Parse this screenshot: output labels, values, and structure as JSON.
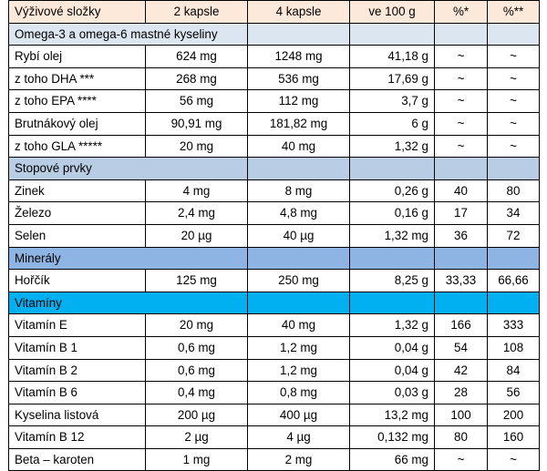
{
  "table": {
    "header": [
      "Výživové složky",
      "2 kapsle",
      "4 kapsle",
      "ve 100 g",
      "%*",
      "%**"
    ],
    "sections": [
      {
        "title": "Omega-3 a omega-6 mastné kyseliny",
        "color": "#dce6f1",
        "rows": [
          [
            "Rybí olej",
            "624 mg",
            "1248 mg",
            "41,18 g",
            "~",
            "~"
          ],
          [
            "z toho DHA ***",
            "268 mg",
            "536 mg",
            "17,69 g",
            "~",
            "~"
          ],
          [
            "z toho EPA ****",
            "56 mg",
            "112 mg",
            "3,7 g",
            "~",
            "~"
          ],
          [
            "Brutnákový olej",
            "90,91 mg",
            "181,82 mg",
            "6 g",
            "~",
            "~"
          ],
          [
            "z toho GLA *****",
            "20 mg",
            "40 mg",
            "1,32 g",
            "~",
            "~"
          ]
        ]
      },
      {
        "title": "Stopové prvky",
        "color": "#b8cce4",
        "rows": [
          [
            "Zinek",
            "4 mg",
            "8 mg",
            "0,26 g",
            "40",
            "80"
          ],
          [
            "Železo",
            "2,4 mg",
            "4,8 mg",
            "0,16 g",
            "17",
            "34"
          ],
          [
            "Selen",
            "20 µg",
            "40 µg",
            "1,32 mg",
            "36",
            "72"
          ]
        ]
      },
      {
        "title": "Minerály",
        "color": "#8db4e2",
        "rows": [
          [
            "Hořčík",
            "125 mg",
            "250 mg",
            "8,25 g",
            "33,33",
            "66,66"
          ]
        ]
      },
      {
        "title": "Vitamíny",
        "color": "#00b0f0",
        "rows": [
          [
            "Vitamín E",
            "20 mg",
            "40 mg",
            "1,32 g",
            "166",
            "333"
          ],
          [
            "Vitamín B 1",
            "0,6 mg",
            "1,2 mg",
            "0,04 g",
            "54",
            "108"
          ],
          [
            "Vitamín B 2",
            "0,6 mg",
            "1,2 mg",
            "0,04 g",
            "42",
            "84"
          ],
          [
            "Vitamín B 6",
            "0,4 mg",
            "0,8 mg",
            "0,03 g",
            "28",
            "56"
          ],
          [
            "Kyselina listová",
            "200 µg",
            "400 µg",
            "13,2 mg",
            "100",
            "200"
          ],
          [
            "Vitamín B 12",
            "2 µg",
            "4 µg",
            "0,132 mg",
            "80",
            "160"
          ],
          [
            "Beta – karoten",
            "1 mg",
            "2 mg",
            "66 mg",
            "~",
            "~"
          ]
        ]
      }
    ]
  }
}
